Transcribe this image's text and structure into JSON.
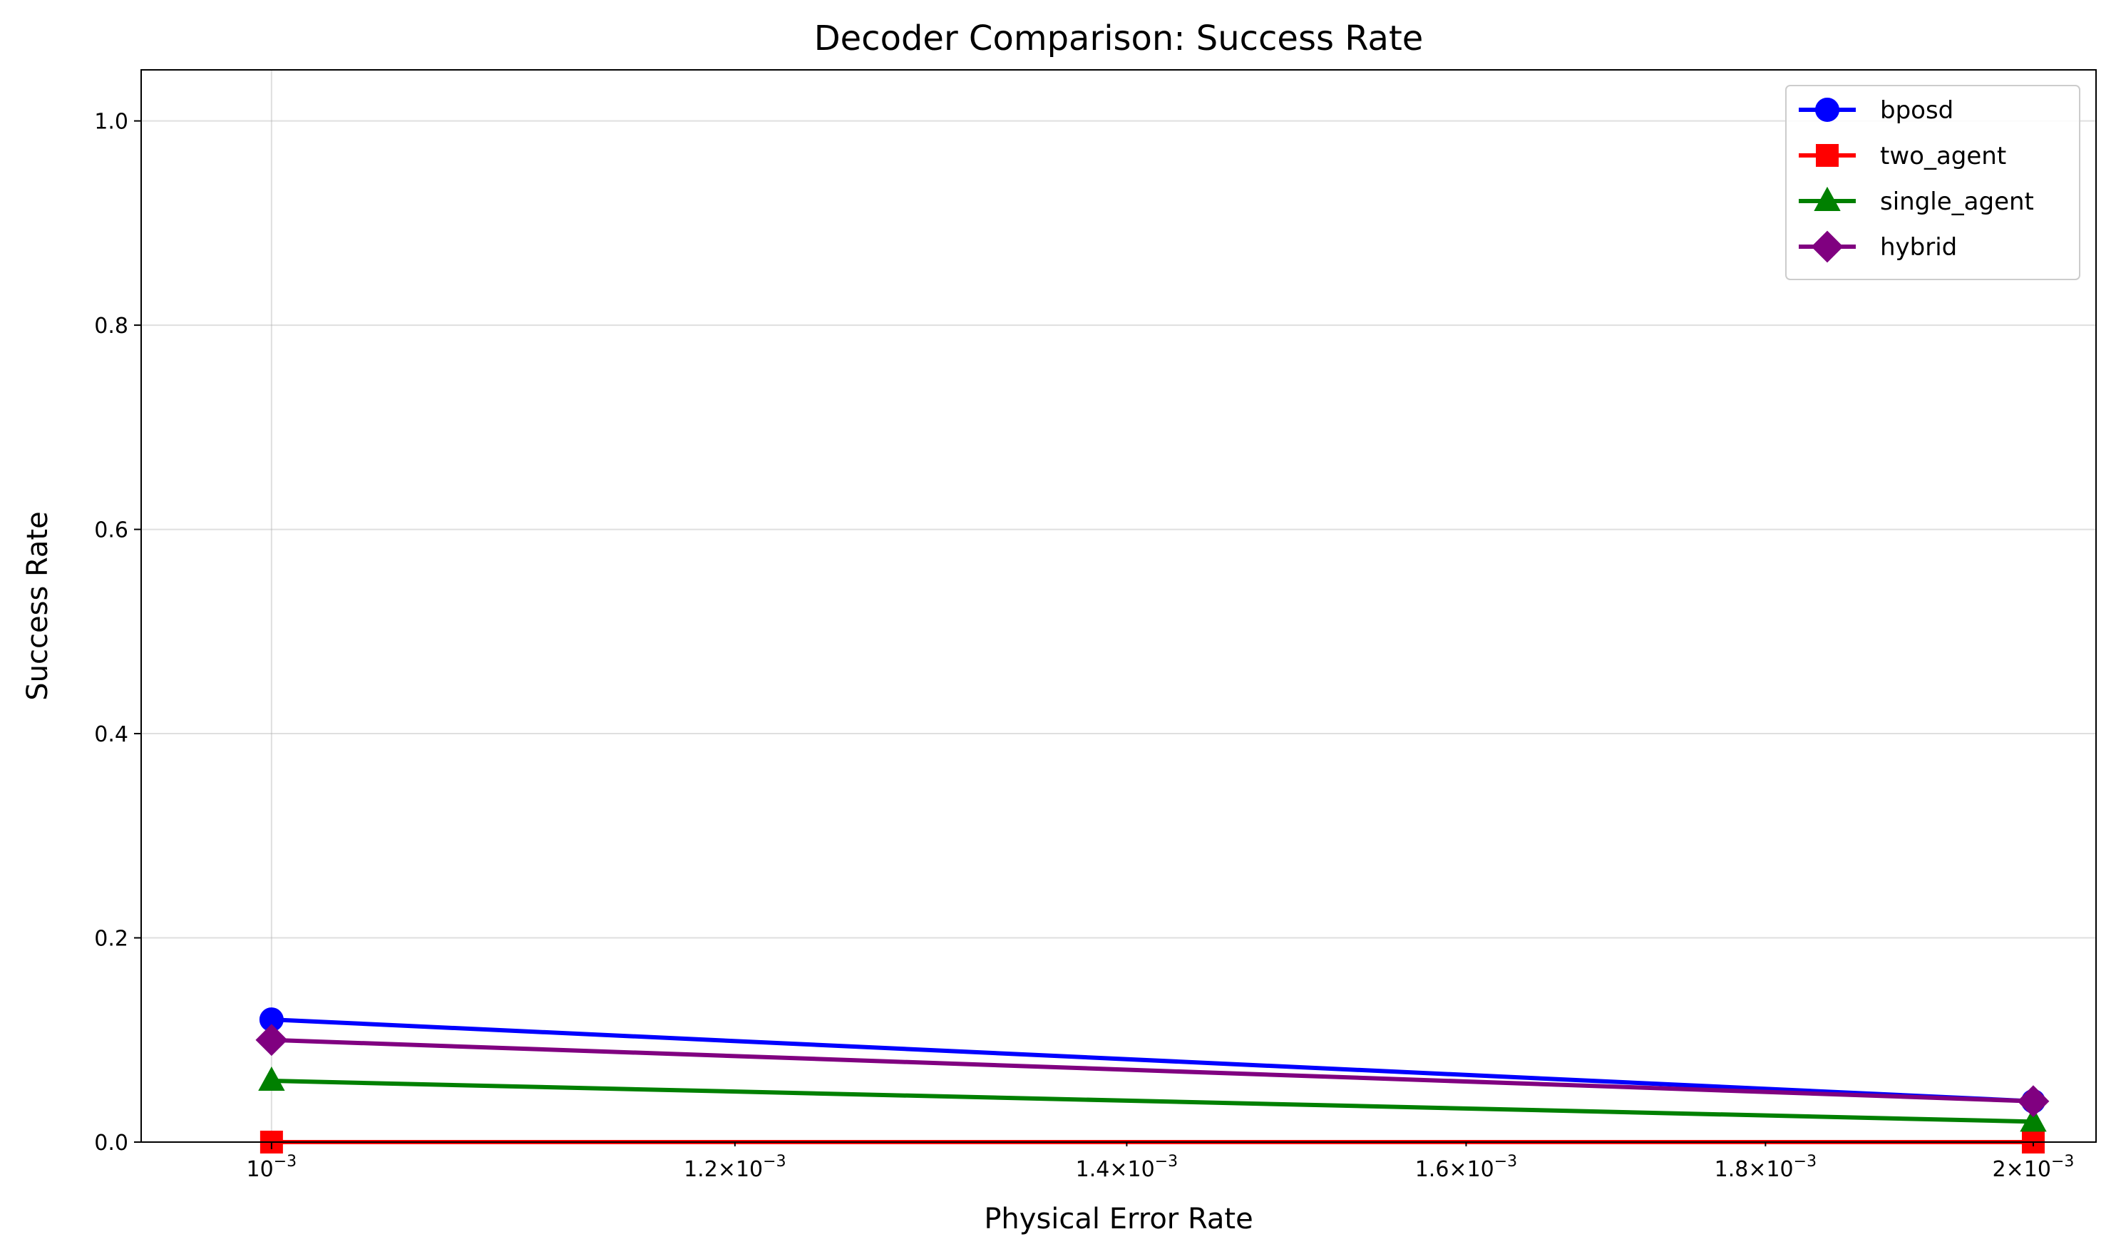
{
  "chart_data": {
    "type": "line",
    "title": "Decoder Comparison: Success Rate",
    "xlabel": "Physical Error Rate",
    "ylabel": "Success Rate",
    "xscale": "log",
    "xlim": [
      0.00095,
      0.00205
    ],
    "ylim": [
      0.0,
      1.05
    ],
    "x": [
      0.001,
      0.002
    ],
    "x_ticks": [
      {
        "value": 0.001,
        "base": "10",
        "exp": "−3",
        "mantissa": ""
      },
      {
        "value": 0.0012,
        "base": "10",
        "exp": "−3",
        "mantissa": "1.2"
      },
      {
        "value": 0.0014,
        "base": "10",
        "exp": "−3",
        "mantissa": "1.4"
      },
      {
        "value": 0.0016,
        "base": "10",
        "exp": "−3",
        "mantissa": "1.6"
      },
      {
        "value": 0.0018,
        "base": "10",
        "exp": "−3",
        "mantissa": "1.8"
      },
      {
        "value": 0.002,
        "base": "10",
        "exp": "−3",
        "mantissa": "2"
      }
    ],
    "y_ticks": [
      {
        "value": 0.0,
        "label": "0.0"
      },
      {
        "value": 0.2,
        "label": "0.2"
      },
      {
        "value": 0.4,
        "label": "0.4"
      },
      {
        "value": 0.6,
        "label": "0.6"
      },
      {
        "value": 0.8,
        "label": "0.8"
      },
      {
        "value": 1.0,
        "label": "1.0"
      }
    ],
    "grid": true,
    "legend_position": "top-right",
    "series": [
      {
        "name": "bposd",
        "values": [
          0.12,
          0.04
        ],
        "color": "#0000ff",
        "marker": "circle"
      },
      {
        "name": "two_agent",
        "values": [
          0.0,
          0.0
        ],
        "color": "#ff0000",
        "marker": "square"
      },
      {
        "name": "single_agent",
        "values": [
          0.06,
          0.02
        ],
        "color": "#008000",
        "marker": "triangle"
      },
      {
        "name": "hybrid",
        "values": [
          0.1,
          0.04
        ],
        "color": "#800080",
        "marker": "diamond"
      }
    ]
  }
}
